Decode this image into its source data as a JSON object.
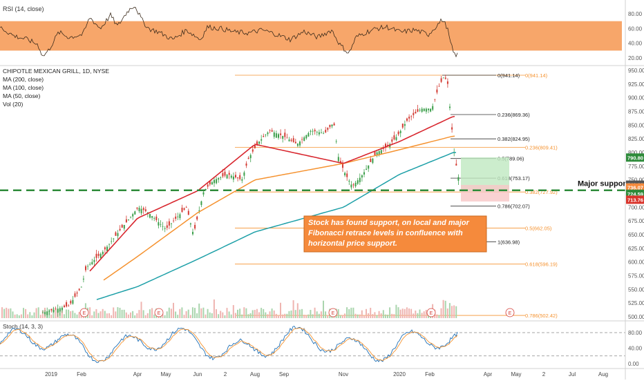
{
  "panes": {
    "rsi": {
      "label": "RSI (14, close)",
      "ticks": [
        "80.00",
        "60.00",
        "40.00",
        "20.00"
      ],
      "tick_values": [
        80,
        60,
        40,
        20
      ],
      "band": [
        30,
        70
      ],
      "band_color": "#f7a66a",
      "line_color": "#3a2a1a"
    },
    "main": {
      "title": "CHIPOTLE MEXICAN GRILL, 1D, NYSE",
      "legend": [
        "MA (200, close)",
        "MA (100, close)",
        "MA (50, close)",
        "Vol (20)"
      ],
      "ticks": [
        "950.00",
        "925.00",
        "900.00",
        "875.00",
        "850.00",
        "825.00",
        "800.00",
        "775.00",
        "750.00",
        "725.00",
        "700.00",
        "675.00",
        "650.00",
        "625.00",
        "600.00",
        "575.00",
        "550.00",
        "525.00",
        "500.00"
      ],
      "tick_values": [
        950,
        925,
        900,
        875,
        850,
        825,
        800,
        775,
        750,
        725,
        700,
        675,
        650,
        625,
        600,
        575,
        550,
        525,
        500
      ],
      "price_tags": [
        {
          "label": "790.80",
          "value": 790.8,
          "color": "#2e8b3a"
        },
        {
          "label": "741.28",
          "value": 741.28,
          "color": "#555555"
        },
        {
          "label": "736.07",
          "value": 736.07,
          "color": "#f58a3c"
        },
        {
          "label": "724.59",
          "value": 724.59,
          "color": "#2e8b3a"
        },
        {
          "label": "713.76",
          "value": 713.76,
          "color": "#d9342b"
        }
      ]
    },
    "stoch": {
      "label": "Stoch (14, 3, 3)",
      "ticks": [
        "80.00",
        "40.00",
        "0.00"
      ],
      "tick_values": [
        80,
        40,
        0
      ],
      "levels": [
        80,
        20
      ]
    }
  },
  "time_axis": [
    "2019",
    "Feb",
    "Apr",
    "May",
    "Jun",
    "2",
    "Aug",
    "Sep",
    "Nov",
    "2020",
    "Feb",
    "Apr",
    "May",
    "2",
    "Jul",
    "Aug"
  ],
  "fib_local": [
    {
      "label": "0(941.14)",
      "value": 941.14
    },
    {
      "label": "0.236(869.36)",
      "value": 869.36
    },
    {
      "label": "0.382(824.95)",
      "value": 824.95
    },
    {
      "label": "0.5(789.06)",
      "value": 789.06
    },
    {
      "label": "0.618(753.17)",
      "value": 753.17
    },
    {
      "label": "0.786(702.07)",
      "value": 702.07
    },
    {
      "label": "1(636.98)",
      "value": 636.98
    }
  ],
  "fib_major": [
    {
      "label": "0(941.14)",
      "value": 941.14
    },
    {
      "label": "0.236(809.41)",
      "value": 809.41
    },
    {
      "label": "0.382(727.92)",
      "value": 727.92
    },
    {
      "label": "0.5(662.05)",
      "value": 662.05
    },
    {
      "label": "0.618(596.19)",
      "value": 596.19
    },
    {
      "label": "0.786(502.42)",
      "value": 502.42
    }
  ],
  "support": {
    "label": "Major support",
    "value": 731
  },
  "annotation": {
    "text": [
      "Stock has found support, on local and major",
      "Fibonacci retrace levels in confluence with",
      "horizontal price support."
    ]
  },
  "earnings_marker": "E",
  "colors": {
    "ma200": "#1ea0a8",
    "ma100": "#f5922f",
    "ma50": "#d8262e",
    "up": "#3b9e4a",
    "down": "#d33b33",
    "fib": "#f5922f",
    "support": "#2e8b3a",
    "annotation_bg": "#f58a3c"
  },
  "chart_data": {
    "type": "line",
    "title": "CHIPOTLE MEXICAN GRILL, 1D, NYSE",
    "series": [
      {
        "name": "MA (200, close)",
        "x": [
          "2019",
          "Apr",
          "Jun",
          "Aug",
          "Nov",
          "2020",
          "Feb"
        ],
        "values": [
          505,
          555,
          605,
          655,
          700,
          760,
          800
        ]
      },
      {
        "name": "MA (100, close)",
        "x": [
          "2019",
          "Apr",
          "Jun",
          "Aug",
          "Nov",
          "2020",
          "Feb"
        ],
        "values": [
          500,
          610,
          690,
          750,
          780,
          805,
          830
        ]
      },
      {
        "name": "MA (50, close)",
        "x": [
          "2019",
          "Apr",
          "Jun",
          "Aug",
          "Nov",
          "2020",
          "Feb"
        ],
        "values": [
          505,
          680,
          730,
          815,
          780,
          820,
          866
        ]
      }
    ],
    "price_path": {
      "x": [
        "2019",
        "Feb",
        "Apr",
        "May",
        "Jun",
        "Aug",
        "Sep",
        "Oct",
        "Nov",
        "Dec",
        "2020",
        "Feb",
        "Feb"
      ],
      "values": [
        505,
        590,
        700,
        660,
        760,
        840,
        820,
        855,
        738,
        790,
        845,
        940,
        725
      ]
    },
    "ylim": [
      490,
      960
    ],
    "support_level": 731
  }
}
